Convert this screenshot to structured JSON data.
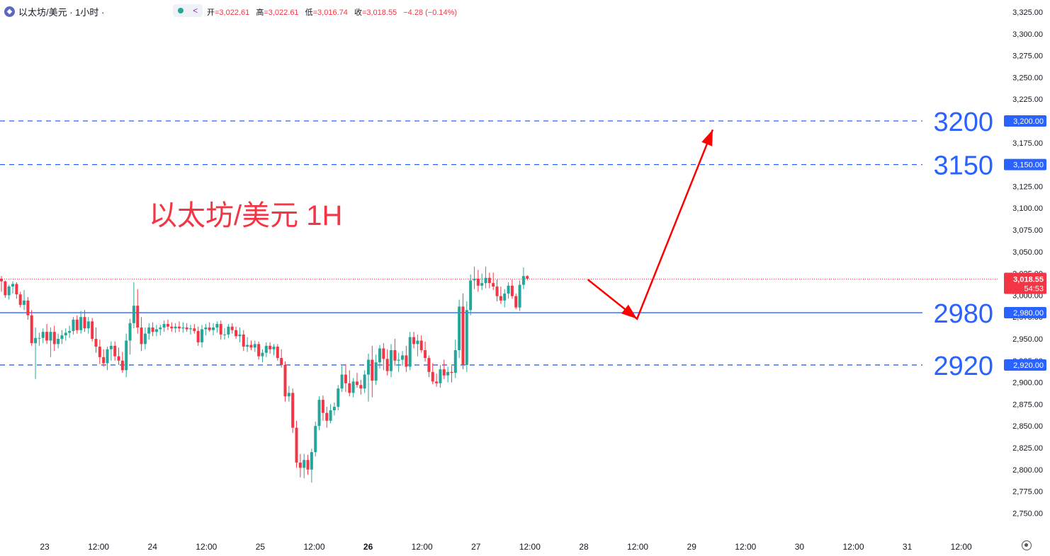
{
  "header": {
    "title": "以太坊/美元 · 1小时 ·",
    "open_label": "开",
    "open": "=3,022.61",
    "high_label": "高",
    "high": "=3,022.61",
    "low_label": "低",
    "low": "=3,016.74",
    "close_label": "收",
    "close": "=3,018.55",
    "change": "−4.28 (−0.14%)"
  },
  "icons": [
    "ethereum-icon",
    "indicator-dot-icon",
    "share-icon",
    "timezone-icon"
  ],
  "colors": {
    "up": "#26a69a",
    "down": "#f23645",
    "levels": "#2962ff",
    "arrow": "#ff0000"
  },
  "chart_data": {
    "type": "candlestick",
    "title": "以太坊/美元 1H",
    "ylim": [
      2735,
      3335
    ],
    "y_ticks": [
      "3,325.00",
      "3,300.00",
      "3,275.00",
      "3,250.00",
      "3,225.00",
      "3,200.00",
      "3,175.00",
      "3,150.00",
      "3,125.00",
      "3,100.00",
      "3,075.00",
      "3,050.00",
      "3,025.00",
      "3,000.00",
      "2,975.00",
      "2,950.00",
      "2,925.00",
      "2,900.00",
      "2,875.00",
      "2,850.00",
      "2,825.00",
      "2,800.00",
      "2,775.00",
      "2,750.00"
    ],
    "x_labels": [
      "23",
      "12:00",
      "24",
      "12:00",
      "25",
      "12:00",
      "26",
      "12:00",
      "27",
      "12:00",
      "28",
      "12:00",
      "29",
      "12:00",
      "30",
      "12:00",
      "31",
      "12:00"
    ],
    "current_price": {
      "value": 3018.55,
      "label": "3,018.55",
      "countdown": "54:53"
    },
    "levels": [
      {
        "value": 3200,
        "label": "3200",
        "axis_label": "3,200.00",
        "style": "dashed"
      },
      {
        "value": 3150,
        "label": "3150",
        "axis_label": "3,150.00",
        "style": "dashed"
      },
      {
        "value": 2980,
        "label": "2980",
        "axis_label": "2,980.00",
        "style": "solid"
      },
      {
        "value": 2920,
        "label": "2920",
        "axis_label": "2,920.00",
        "style": "dashed"
      }
    ],
    "forecast_path": [
      {
        "bar": 155,
        "price": 3018
      },
      {
        "bar": 168,
        "price": 2973
      },
      {
        "bar": 188,
        "price": 3190
      }
    ],
    "candles": [
      [
        3019,
        3022,
        3004,
        3016
      ],
      [
        3016,
        3017,
        2997,
        3000
      ],
      [
        3000,
        3012,
        2995,
        3010
      ],
      [
        3010,
        3016,
        3002,
        3013
      ],
      [
        3013,
        3015,
        2996,
        3001
      ],
      [
        3001,
        3004,
        2986,
        2989
      ],
      [
        2989,
        3006,
        2983,
        2994
      ],
      [
        2994,
        2998,
        2972,
        2977
      ],
      [
        2977,
        2983,
        2942,
        2945
      ],
      [
        2945,
        2963,
        2904,
        2951
      ],
      [
        2951,
        2957,
        2942,
        2951
      ],
      [
        2951,
        2962,
        2945,
        2958
      ],
      [
        2958,
        2967,
        2944,
        2948
      ],
      [
        2948,
        2963,
        2929,
        2958
      ],
      [
        2958,
        2965,
        2936,
        2944
      ],
      [
        2944,
        2956,
        2939,
        2950
      ],
      [
        2950,
        2960,
        2944,
        2954
      ],
      [
        2954,
        2962,
        2948,
        2957
      ],
      [
        2957,
        2965,
        2951,
        2959
      ],
      [
        2959,
        2975,
        2955,
        2972
      ],
      [
        2972,
        2977,
        2956,
        2960
      ],
      [
        2960,
        2982,
        2956,
        2975
      ],
      [
        2975,
        2983,
        2958,
        2962
      ],
      [
        2962,
        2975,
        2956,
        2970
      ],
      [
        2970,
        2974,
        2947,
        2950
      ],
      [
        2950,
        2963,
        2934,
        2941
      ],
      [
        2941,
        2949,
        2921,
        2929
      ],
      [
        2929,
        2938,
        2918,
        2922
      ],
      [
        2922,
        2941,
        2914,
        2938
      ],
      [
        2938,
        2947,
        2925,
        2942
      ],
      [
        2942,
        2947,
        2925,
        2930
      ],
      [
        2930,
        2940,
        2920,
        2925
      ],
      [
        2925,
        2935,
        2911,
        2914
      ],
      [
        2914,
        2956,
        2906,
        2948
      ],
      [
        2948,
        2973,
        2932,
        2968
      ],
      [
        2968,
        3015,
        2962,
        2988
      ],
      [
        2988,
        3007,
        2956,
        2963
      ],
      [
        2963,
        2975,
        2936,
        2944
      ],
      [
        2944,
        2963,
        2938,
        2956
      ],
      [
        2956,
        2968,
        2949,
        2963
      ],
      [
        2963,
        2969,
        2953,
        2958
      ],
      [
        2958,
        2966,
        2953,
        2961
      ],
      [
        2961,
        2966,
        2954,
        2963
      ],
      [
        2963,
        2971,
        2958,
        2967
      ],
      [
        2967,
        2972,
        2960,
        2964
      ],
      [
        2964,
        2969,
        2958,
        2962
      ],
      [
        2962,
        2968,
        2957,
        2964
      ],
      [
        2964,
        2970,
        2958,
        2962
      ],
      [
        2962,
        2969,
        2957,
        2963
      ],
      [
        2963,
        2968,
        2958,
        2961
      ],
      [
        2961,
        2966,
        2955,
        2962
      ],
      [
        2962,
        2967,
        2956,
        2959
      ],
      [
        2959,
        2964,
        2942,
        2946
      ],
      [
        2946,
        2966,
        2940,
        2961
      ],
      [
        2961,
        2967,
        2954,
        2963
      ],
      [
        2963,
        2969,
        2958,
        2960
      ],
      [
        2960,
        2968,
        2954,
        2963
      ],
      [
        2963,
        2970,
        2957,
        2967
      ],
      [
        2967,
        2971,
        2949,
        2955
      ],
      [
        2955,
        2962,
        2949,
        2955
      ],
      [
        2955,
        2967,
        2951,
        2964
      ],
      [
        2964,
        2968,
        2956,
        2960
      ],
      [
        2960,
        2964,
        2950,
        2953
      ],
      [
        2953,
        2963,
        2946,
        2955
      ],
      [
        2955,
        2960,
        2936,
        2941
      ],
      [
        2941,
        2952,
        2935,
        2943
      ],
      [
        2943,
        2948,
        2937,
        2940
      ],
      [
        2940,
        2948,
        2935,
        2944
      ],
      [
        2944,
        2947,
        2926,
        2930
      ],
      [
        2930,
        2938,
        2923,
        2934
      ],
      [
        2934,
        2946,
        2929,
        2942
      ],
      [
        2942,
        2946,
        2933,
        2938
      ],
      [
        2938,
        2944,
        2931,
        2941
      ],
      [
        2941,
        2944,
        2925,
        2928
      ],
      [
        2928,
        2938,
        2917,
        2920
      ],
      [
        2920,
        2924,
        2878,
        2884
      ],
      [
        2884,
        2896,
        2878,
        2888
      ],
      [
        2888,
        2893,
        2842,
        2848
      ],
      [
        2848,
        2856,
        2802,
        2808
      ],
      [
        2808,
        2818,
        2791,
        2802
      ],
      [
        2802,
        2818,
        2790,
        2811
      ],
      [
        2811,
        2817,
        2794,
        2800
      ],
      [
        2800,
        2824,
        2785,
        2820
      ],
      [
        2820,
        2855,
        2815,
        2850
      ],
      [
        2850,
        2884,
        2845,
        2880
      ],
      [
        2880,
        2885,
        2856,
        2865
      ],
      [
        2865,
        2872,
        2848,
        2856
      ],
      [
        2856,
        2875,
        2853,
        2868
      ],
      [
        2868,
        2877,
        2862,
        2872
      ],
      [
        2872,
        2897,
        2868,
        2893
      ],
      [
        2893,
        2919,
        2889,
        2909
      ],
      [
        2909,
        2921,
        2889,
        2899
      ],
      [
        2899,
        2914,
        2884,
        2888
      ],
      [
        2888,
        2905,
        2883,
        2901
      ],
      [
        2901,
        2911,
        2894,
        2897
      ],
      [
        2897,
        2903,
        2886,
        2893
      ],
      [
        2893,
        2914,
        2888,
        2909
      ],
      [
        2909,
        2933,
        2878,
        2926
      ],
      [
        2926,
        2942,
        2883,
        2902
      ],
      [
        2902,
        2932,
        2897,
        2923
      ],
      [
        2923,
        2943,
        2916,
        2939
      ],
      [
        2939,
        2945,
        2914,
        2927
      ],
      [
        2927,
        2938,
        2908,
        2913
      ],
      [
        2913,
        2944,
        2906,
        2937
      ],
      [
        2937,
        2950,
        2919,
        2925
      ],
      [
        2925,
        2934,
        2912,
        2926
      ],
      [
        2926,
        2936,
        2919,
        2931
      ],
      [
        2931,
        2942,
        2912,
        2918
      ],
      [
        2918,
        2958,
        2914,
        2952
      ],
      [
        2952,
        2958,
        2939,
        2944
      ],
      [
        2944,
        2955,
        2930,
        2948
      ],
      [
        2948,
        2954,
        2934,
        2937
      ],
      [
        2937,
        2947,
        2924,
        2928
      ],
      [
        2928,
        2931,
        2906,
        2912
      ],
      [
        2912,
        2922,
        2898,
        2901
      ],
      [
        2901,
        2910,
        2895,
        2899
      ],
      [
        2899,
        2920,
        2894,
        2915
      ],
      [
        2915,
        2926,
        2904,
        2908
      ],
      [
        2908,
        2918,
        2900,
        2912
      ],
      [
        2912,
        2919,
        2900,
        2911
      ],
      [
        2911,
        2949,
        2905,
        2937
      ],
      [
        2937,
        2995,
        2928,
        2987
      ],
      [
        2987,
        3002,
        2915,
        2920
      ],
      [
        2920,
        2993,
        2912,
        2983
      ],
      [
        2983,
        3024,
        2977,
        3017
      ],
      [
        3017,
        3033,
        3007,
        3019
      ],
      [
        3019,
        3029,
        3004,
        3011
      ],
      [
        3011,
        3025,
        3006,
        3014
      ],
      [
        3014,
        3033,
        3008,
        3020
      ],
      [
        3020,
        3026,
        3008,
        3014
      ],
      [
        3014,
        3026,
        3006,
        3010
      ],
      [
        3010,
        3018,
        2993,
        2999
      ],
      [
        2999,
        3010,
        2990,
        2994
      ],
      [
        2994,
        3007,
        2986,
        3002
      ],
      [
        3002,
        3015,
        2996,
        3011
      ],
      [
        3011,
        3018,
        2996,
        2999
      ],
      [
        2999,
        3002,
        2984,
        2986
      ],
      [
        2986,
        3017,
        2982,
        3012
      ],
      [
        3012,
        3032,
        3007,
        3022
      ],
      [
        3022,
        3023,
        3017,
        3019
      ]
    ]
  }
}
